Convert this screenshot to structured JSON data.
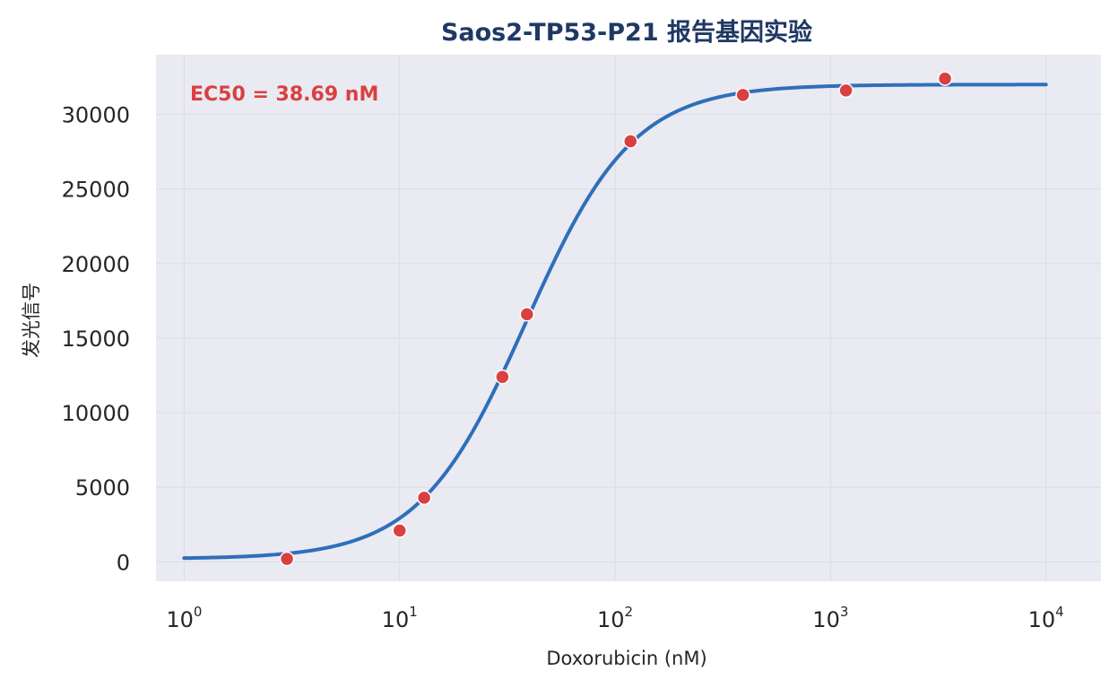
{
  "chart_data": {
    "type": "scatter",
    "title": "Saos2-TP53-P21 报告基因实验",
    "xlabel": "Doxorubicin (nM)",
    "ylabel": "发光信号",
    "x_scale": "log",
    "xlim": [
      0.74,
      18000
    ],
    "ylim": [
      -1300,
      34000
    ],
    "x_ticks": [
      {
        "base": "10",
        "exp": "0",
        "value": 1
      },
      {
        "base": "10",
        "exp": "1",
        "value": 10
      },
      {
        "base": "10",
        "exp": "2",
        "value": 100
      },
      {
        "base": "10",
        "exp": "3",
        "value": 1000
      },
      {
        "base": "10",
        "exp": "4",
        "value": 10000
      }
    ],
    "y_ticks": [
      0,
      5000,
      10000,
      15000,
      20000,
      25000,
      30000
    ],
    "grid": true,
    "annotation": "EC50 = 38.69 nM",
    "series": [
      {
        "kind": "points",
        "x": [
          3,
          10,
          13,
          30,
          39,
          118,
          392,
          1180,
          3400
        ],
        "y": [
          200,
          2100,
          4300,
          12400,
          16600,
          28200,
          31300,
          31600,
          32400
        ],
        "color": "#d94040"
      },
      {
        "kind": "fit-curve",
        "model": "4PL",
        "bottom": 200,
        "top": 32000,
        "ec50": 38.69,
        "hill": 1.75,
        "x_range": [
          1,
          10000
        ],
        "color": "#2e6fba"
      }
    ],
    "plot_background": "#eaeaf2"
  }
}
